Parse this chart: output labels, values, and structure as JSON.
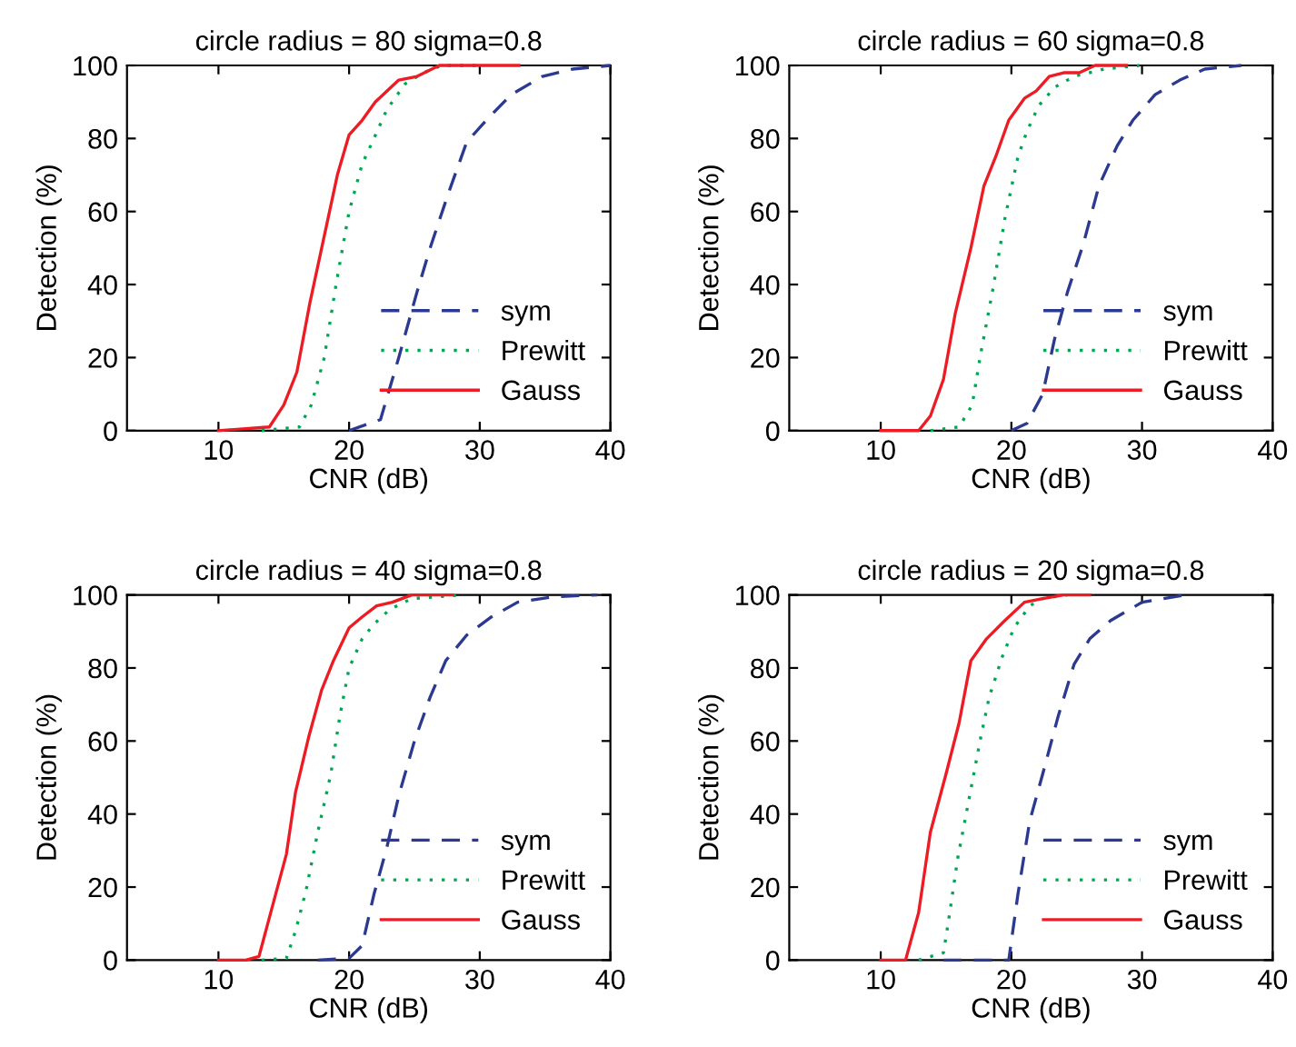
{
  "chart_data": [
    {
      "type": "line",
      "title": "circle radius = 80 sigma=0.8",
      "xlabel": "CNR (dB)",
      "ylabel": "Detection (%)",
      "xlim": [
        3,
        40
      ],
      "ylim": [
        0,
        100
      ],
      "xticks": [
        10,
        20,
        30,
        40
      ],
      "yticks": [
        0,
        20,
        40,
        60,
        80,
        100
      ],
      "legend": "lower right",
      "series": [
        {
          "name": "sym",
          "color": "#2b3990",
          "line_style": "dashed",
          "x": [
            20,
            22.4,
            23.8,
            25.2,
            26.2,
            27.6,
            29,
            30.5,
            32.4,
            34.8,
            37.1,
            40
          ],
          "values": [
            0,
            3,
            20,
            38,
            50,
            65,
            79,
            85,
            92,
            97,
            99,
            100
          ]
        },
        {
          "name": "Prewitt",
          "color": "#00a651",
          "line_style": "dotted",
          "x": [
            13.3,
            16.2,
            17.1,
            18.1,
            19,
            20,
            21,
            21.9,
            22.9,
            24.3,
            25.7,
            27.1,
            30
          ],
          "values": [
            0,
            1,
            7,
            20,
            40,
            60,
            73,
            80,
            88,
            95,
            98,
            100,
            100
          ]
        },
        {
          "name": "Gauss",
          "color": "#ed1c24",
          "line_style": "solid",
          "x": [
            10,
            13.9,
            15,
            16,
            17,
            18.2,
            19.1,
            20,
            21,
            22,
            23.8,
            25.2,
            26.9,
            33
          ],
          "values": [
            0,
            1,
            7,
            16,
            35,
            55,
            70,
            81,
            85,
            90,
            96,
            97,
            100,
            100
          ]
        }
      ]
    },
    {
      "type": "line",
      "title": "circle radius = 60 sigma=0.8",
      "xlabel": "CNR (dB)",
      "ylabel": "Detection (%)",
      "xlim": [
        3,
        40
      ],
      "ylim": [
        0,
        100
      ],
      "xticks": [
        10,
        20,
        30,
        40
      ],
      "yticks": [
        0,
        20,
        40,
        60,
        80,
        100
      ],
      "legend": "lower right",
      "series": [
        {
          "name": "sym",
          "color": "#2b3990",
          "line_style": "dashed",
          "x": [
            20,
            21.2,
            22.4,
            23.3,
            24.3,
            25.5,
            26.7,
            28.1,
            29.3,
            31,
            32.9,
            34.8,
            37.6
          ],
          "values": [
            0,
            2,
            10,
            25,
            38,
            51,
            67,
            78,
            85,
            92,
            96,
            99,
            100
          ]
        },
        {
          "name": "Prewitt",
          "color": "#00a651",
          "line_style": "dotted",
          "x": [
            13.8,
            16,
            17,
            17.6,
            18.6,
            19.5,
            20.5,
            21.2,
            22.1,
            23.3,
            24.8,
            27.1,
            29.8
          ],
          "values": [
            0,
            1,
            7,
            20,
            39,
            58,
            75,
            82,
            89,
            94,
            97,
            99,
            100
          ]
        },
        {
          "name": "Gauss",
          "color": "#ed1c24",
          "line_style": "solid",
          "x": [
            10,
            12.9,
            13.8,
            14.8,
            15.7,
            16.9,
            17.9,
            18.8,
            19.8,
            21,
            21.9,
            22.9,
            24,
            25.2,
            26.4,
            28.8
          ],
          "values": [
            0,
            0,
            4,
            14,
            32,
            50,
            67,
            75,
            85,
            91,
            93,
            97,
            98,
            98,
            100,
            100
          ]
        }
      ]
    },
    {
      "type": "line",
      "title": "circle radius = 40 sigma=0.8",
      "xlabel": "CNR (dB)",
      "ylabel": "Detection (%)",
      "xlim": [
        3,
        40
      ],
      "ylim": [
        0,
        100
      ],
      "xticks": [
        10,
        20,
        30,
        40
      ],
      "yticks": [
        0,
        20,
        40,
        60,
        80,
        100
      ],
      "legend": "lower right",
      "series": [
        {
          "name": "sym",
          "color": "#2b3990",
          "line_style": "dashed",
          "x": [
            17.6,
            20,
            21,
            21.9,
            22.9,
            23.8,
            25,
            26.2,
            27.4,
            29,
            30.9,
            32.9,
            35.7,
            39
          ],
          "values": [
            0,
            0.5,
            4,
            18,
            31,
            45,
            60,
            72,
            82,
            89,
            94,
            98,
            99.5,
            100
          ]
        },
        {
          "name": "Prewitt",
          "color": "#00a651",
          "line_style": "dotted",
          "x": [
            13.3,
            15.2,
            15.9,
            16.7,
            17.6,
            18.6,
            19.3,
            20,
            21,
            21.9,
            23.1,
            24.8,
            28.8
          ],
          "values": [
            0,
            0.5,
            8,
            19,
            35,
            51,
            67,
            80,
            88,
            92,
            96,
            99,
            100
          ]
        },
        {
          "name": "Gauss",
          "color": "#ed1c24",
          "line_style": "solid",
          "x": [
            10,
            12.1,
            13.1,
            14,
            15.2,
            15.9,
            16.9,
            17.9,
            18.8,
            20,
            21,
            22.1,
            23.3,
            24.8,
            27.9
          ],
          "values": [
            0,
            0,
            1,
            13,
            29,
            46,
            61,
            74,
            82,
            91,
            94,
            97,
            98,
            100,
            100
          ]
        }
      ]
    },
    {
      "type": "line",
      "title": "circle radius = 20 sigma=0.8",
      "xlabel": "CNR (dB)",
      "ylabel": "Detection (%)",
      "xlim": [
        3,
        40
      ],
      "ylim": [
        0,
        100
      ],
      "xticks": [
        10,
        20,
        30,
        40
      ],
      "yticks": [
        0,
        20,
        40,
        60,
        80,
        100
      ],
      "legend": "lower right",
      "series": [
        {
          "name": "sym",
          "color": "#2b3990",
          "line_style": "dashed",
          "x": [
            14.8,
            19.8,
            20.5,
            21.4,
            22.4,
            23.6,
            24.8,
            26,
            27.6,
            30,
            33.3
          ],
          "values": [
            0,
            0,
            18,
            38,
            51,
            67,
            81,
            88,
            93,
            98,
            100
          ]
        },
        {
          "name": "Prewitt",
          "color": "#00a651",
          "line_style": "dotted",
          "x": [
            12.9,
            14.8,
            15.2,
            15.9,
            16.7,
            17.6,
            18.3,
            19.3,
            20.2,
            21.4,
            22.4,
            24.3
          ],
          "values": [
            0,
            2,
            11,
            28,
            43,
            60,
            72,
            83,
            91,
            97,
            99,
            100
          ]
        },
        {
          "name": "Gauss",
          "color": "#ed1c24",
          "line_style": "solid",
          "x": [
            10,
            11.9,
            12.9,
            13.8,
            15,
            16,
            16.9,
            18.1,
            19.5,
            21,
            22.4,
            24,
            26
          ],
          "values": [
            0,
            0,
            13,
            35,
            51,
            65,
            82,
            88,
            93,
            98,
            99,
            100,
            100
          ]
        }
      ]
    }
  ]
}
